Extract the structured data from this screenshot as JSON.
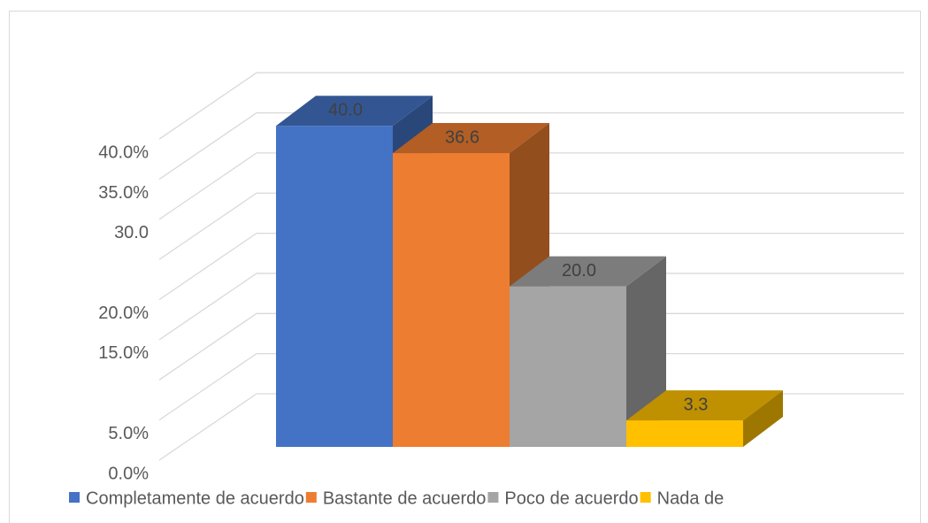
{
  "chart_data": {
    "type": "bar3d",
    "categories": [
      "Completamente de acuerdo",
      "Bastante de acuerdo",
      "Poco de acuerdo",
      "Nada de"
    ],
    "values": [
      40.0,
      36.6,
      20.0,
      3.3
    ],
    "value_labels": [
      "40.0",
      "36.6",
      "20.0",
      "3.3"
    ],
    "colors": [
      "#4472c4",
      "#ed7d31",
      "#a5a5a5",
      "#ffc000"
    ],
    "ylim": [
      0,
      40
    ],
    "yticks": [
      {
        "value": 0,
        "label": "0.0%"
      },
      {
        "value": 5,
        "label": "5.0%"
      },
      {
        "value": 10,
        "label": null
      },
      {
        "value": 15,
        "label": "15.0%"
      },
      {
        "value": 20,
        "label": "20.0%"
      },
      {
        "value": 25,
        "label": null
      },
      {
        "value": 30,
        "label": "30.0"
      },
      {
        "value": 35,
        "label": "35.0%"
      },
      {
        "value": 40,
        "label": "40.0%"
      }
    ],
    "grid": true,
    "legend": "bottom"
  }
}
